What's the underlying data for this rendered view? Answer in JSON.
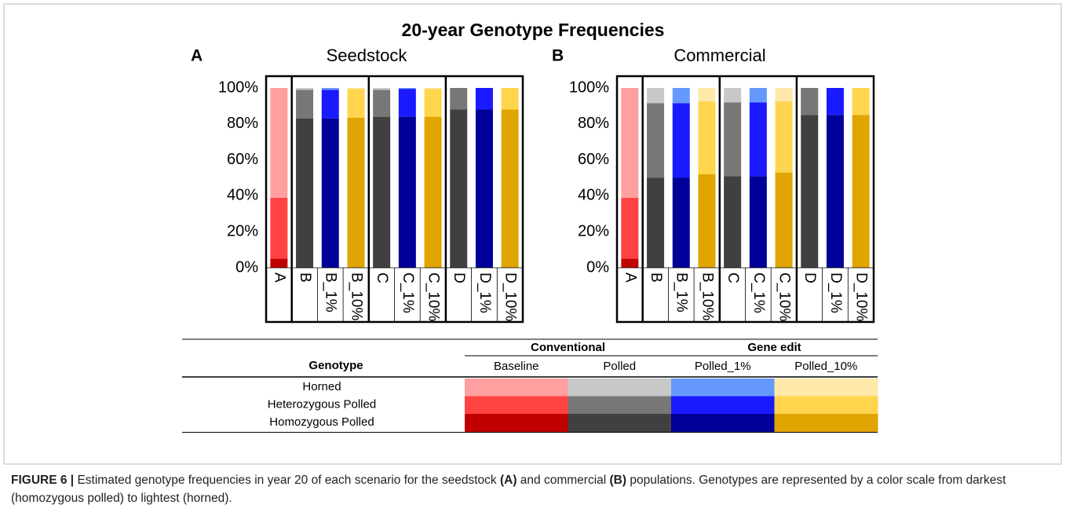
{
  "title": "20-year Genotype Frequencies",
  "chart_data": [
    {
      "type": "stacked_bar",
      "panel": "A",
      "title": "Seedstock",
      "categories": [
        "A",
        "B",
        "B_1%",
        "B_10%",
        "C",
        "C_1%",
        "C_10%",
        "D",
        "D_1%",
        "D_10%"
      ],
      "series": [
        {
          "colors": [
            "#c00000",
            "#404040",
            "#000099",
            "#e0a500",
            "#404040",
            "#000099",
            "#e0a500",
            "#404040",
            "#000099",
            "#e0a500"
          ],
          "values": [
            5,
            83,
            83,
            83.5,
            84,
            84,
            84,
            88,
            88,
            88
          ]
        },
        {
          "colors": [
            "#ff4343",
            "#777777",
            "#1a1aff",
            "#ffd54d",
            "#777777",
            "#1a1aff",
            "#ffd54d",
            "#777777",
            "#1a1aff",
            "#ffd54d"
          ],
          "values": [
            34,
            16,
            16,
            16,
            15,
            15.5,
            15.5,
            12,
            12,
            12
          ]
        },
        {
          "colors": [
            "#ff9f9f",
            "#c8c8c8",
            "#6699ff",
            "#ffe9a8",
            "#c8c8c8",
            "#6699ff",
            "#ffe9a8",
            "#c8c8c8",
            "#6699ff",
            "#ffe9a8"
          ],
          "values": [
            61,
            1,
            1,
            0.5,
            1,
            0.5,
            0.5,
            0,
            0,
            0
          ]
        }
      ],
      "ylim": [
        0,
        100
      ],
      "yticks": [
        {
          "value": 0,
          "label": "0%"
        },
        {
          "value": 20,
          "label": "20%"
        },
        {
          "value": 40,
          "label": "40%"
        },
        {
          "value": 60,
          "label": "60%"
        },
        {
          "value": 80,
          "label": "80%"
        },
        {
          "value": 100,
          "label": "100%"
        }
      ]
    },
    {
      "type": "stacked_bar",
      "panel": "B",
      "title": "Commercial",
      "categories": [
        "A",
        "B",
        "B_1%",
        "B_10%",
        "C",
        "C_1%",
        "C_10%",
        "D",
        "D_1%",
        "D_10%"
      ],
      "series": [
        {
          "colors": [
            "#c00000",
            "#404040",
            "#000099",
            "#e0a500",
            "#404040",
            "#000099",
            "#e0a500",
            "#404040",
            "#000099",
            "#e0a500"
          ],
          "values": [
            5,
            50,
            50,
            52,
            51,
            51,
            53,
            85,
            85,
            85
          ]
        },
        {
          "colors": [
            "#ff4343",
            "#777777",
            "#1a1aff",
            "#ffd54d",
            "#777777",
            "#1a1aff",
            "#ffd54d",
            "#777777",
            "#1a1aff",
            "#ffd54d"
          ],
          "values": [
            34,
            41.5,
            41.5,
            40.5,
            41,
            41,
            39.5,
            15,
            15,
            15
          ]
        },
        {
          "colors": [
            "#ff9f9f",
            "#c8c8c8",
            "#6699ff",
            "#ffe9a8",
            "#c8c8c8",
            "#6699ff",
            "#ffe9a8",
            "#c8c8c8",
            "#6699ff",
            "#ffe9a8"
          ],
          "values": [
            61,
            8.5,
            8.5,
            7.5,
            8,
            8,
            7.5,
            0,
            0,
            0
          ]
        }
      ],
      "ylim": [
        0,
        100
      ],
      "yticks": [
        {
          "value": 0,
          "label": "0%"
        },
        {
          "value": 20,
          "label": "20%"
        },
        {
          "value": 40,
          "label": "40%"
        },
        {
          "value": 60,
          "label": "60%"
        },
        {
          "value": 80,
          "label": "80%"
        },
        {
          "value": 100,
          "label": "100%"
        }
      ]
    }
  ],
  "legend": {
    "row_header": "Genotype",
    "groups": [
      "Conventional",
      "Gene edit"
    ],
    "columns": [
      "Baseline",
      "Polled",
      "Polled_1%",
      "Polled_10%"
    ],
    "rows": [
      {
        "label": "Horned",
        "colors": [
          "#ff9f9f",
          "#c8c8c8",
          "#6699ff",
          "#ffe9a8"
        ]
      },
      {
        "label": "Heterozygous Polled",
        "colors": [
          "#ff4343",
          "#777777",
          "#1a1aff",
          "#ffd54d"
        ]
      },
      {
        "label": "Homozygous Polled",
        "colors": [
          "#c00000",
          "#404040",
          "#000099",
          "#e0a500"
        ]
      }
    ]
  },
  "caption": [
    {
      "text": "FIGURE 6 |",
      "bold": true
    },
    {
      "text": " Estimated genotype frequencies in year 20 of each scenario for the seedstock ",
      "bold": false
    },
    {
      "text": "(A)",
      "bold": true
    },
    {
      "text": " and commercial ",
      "bold": false
    },
    {
      "text": "(B)",
      "bold": true
    },
    {
      "text": " populations. Genotypes are represented by a color scale from darkest (homozygous polled) to lightest (horned).",
      "bold": false
    }
  ]
}
